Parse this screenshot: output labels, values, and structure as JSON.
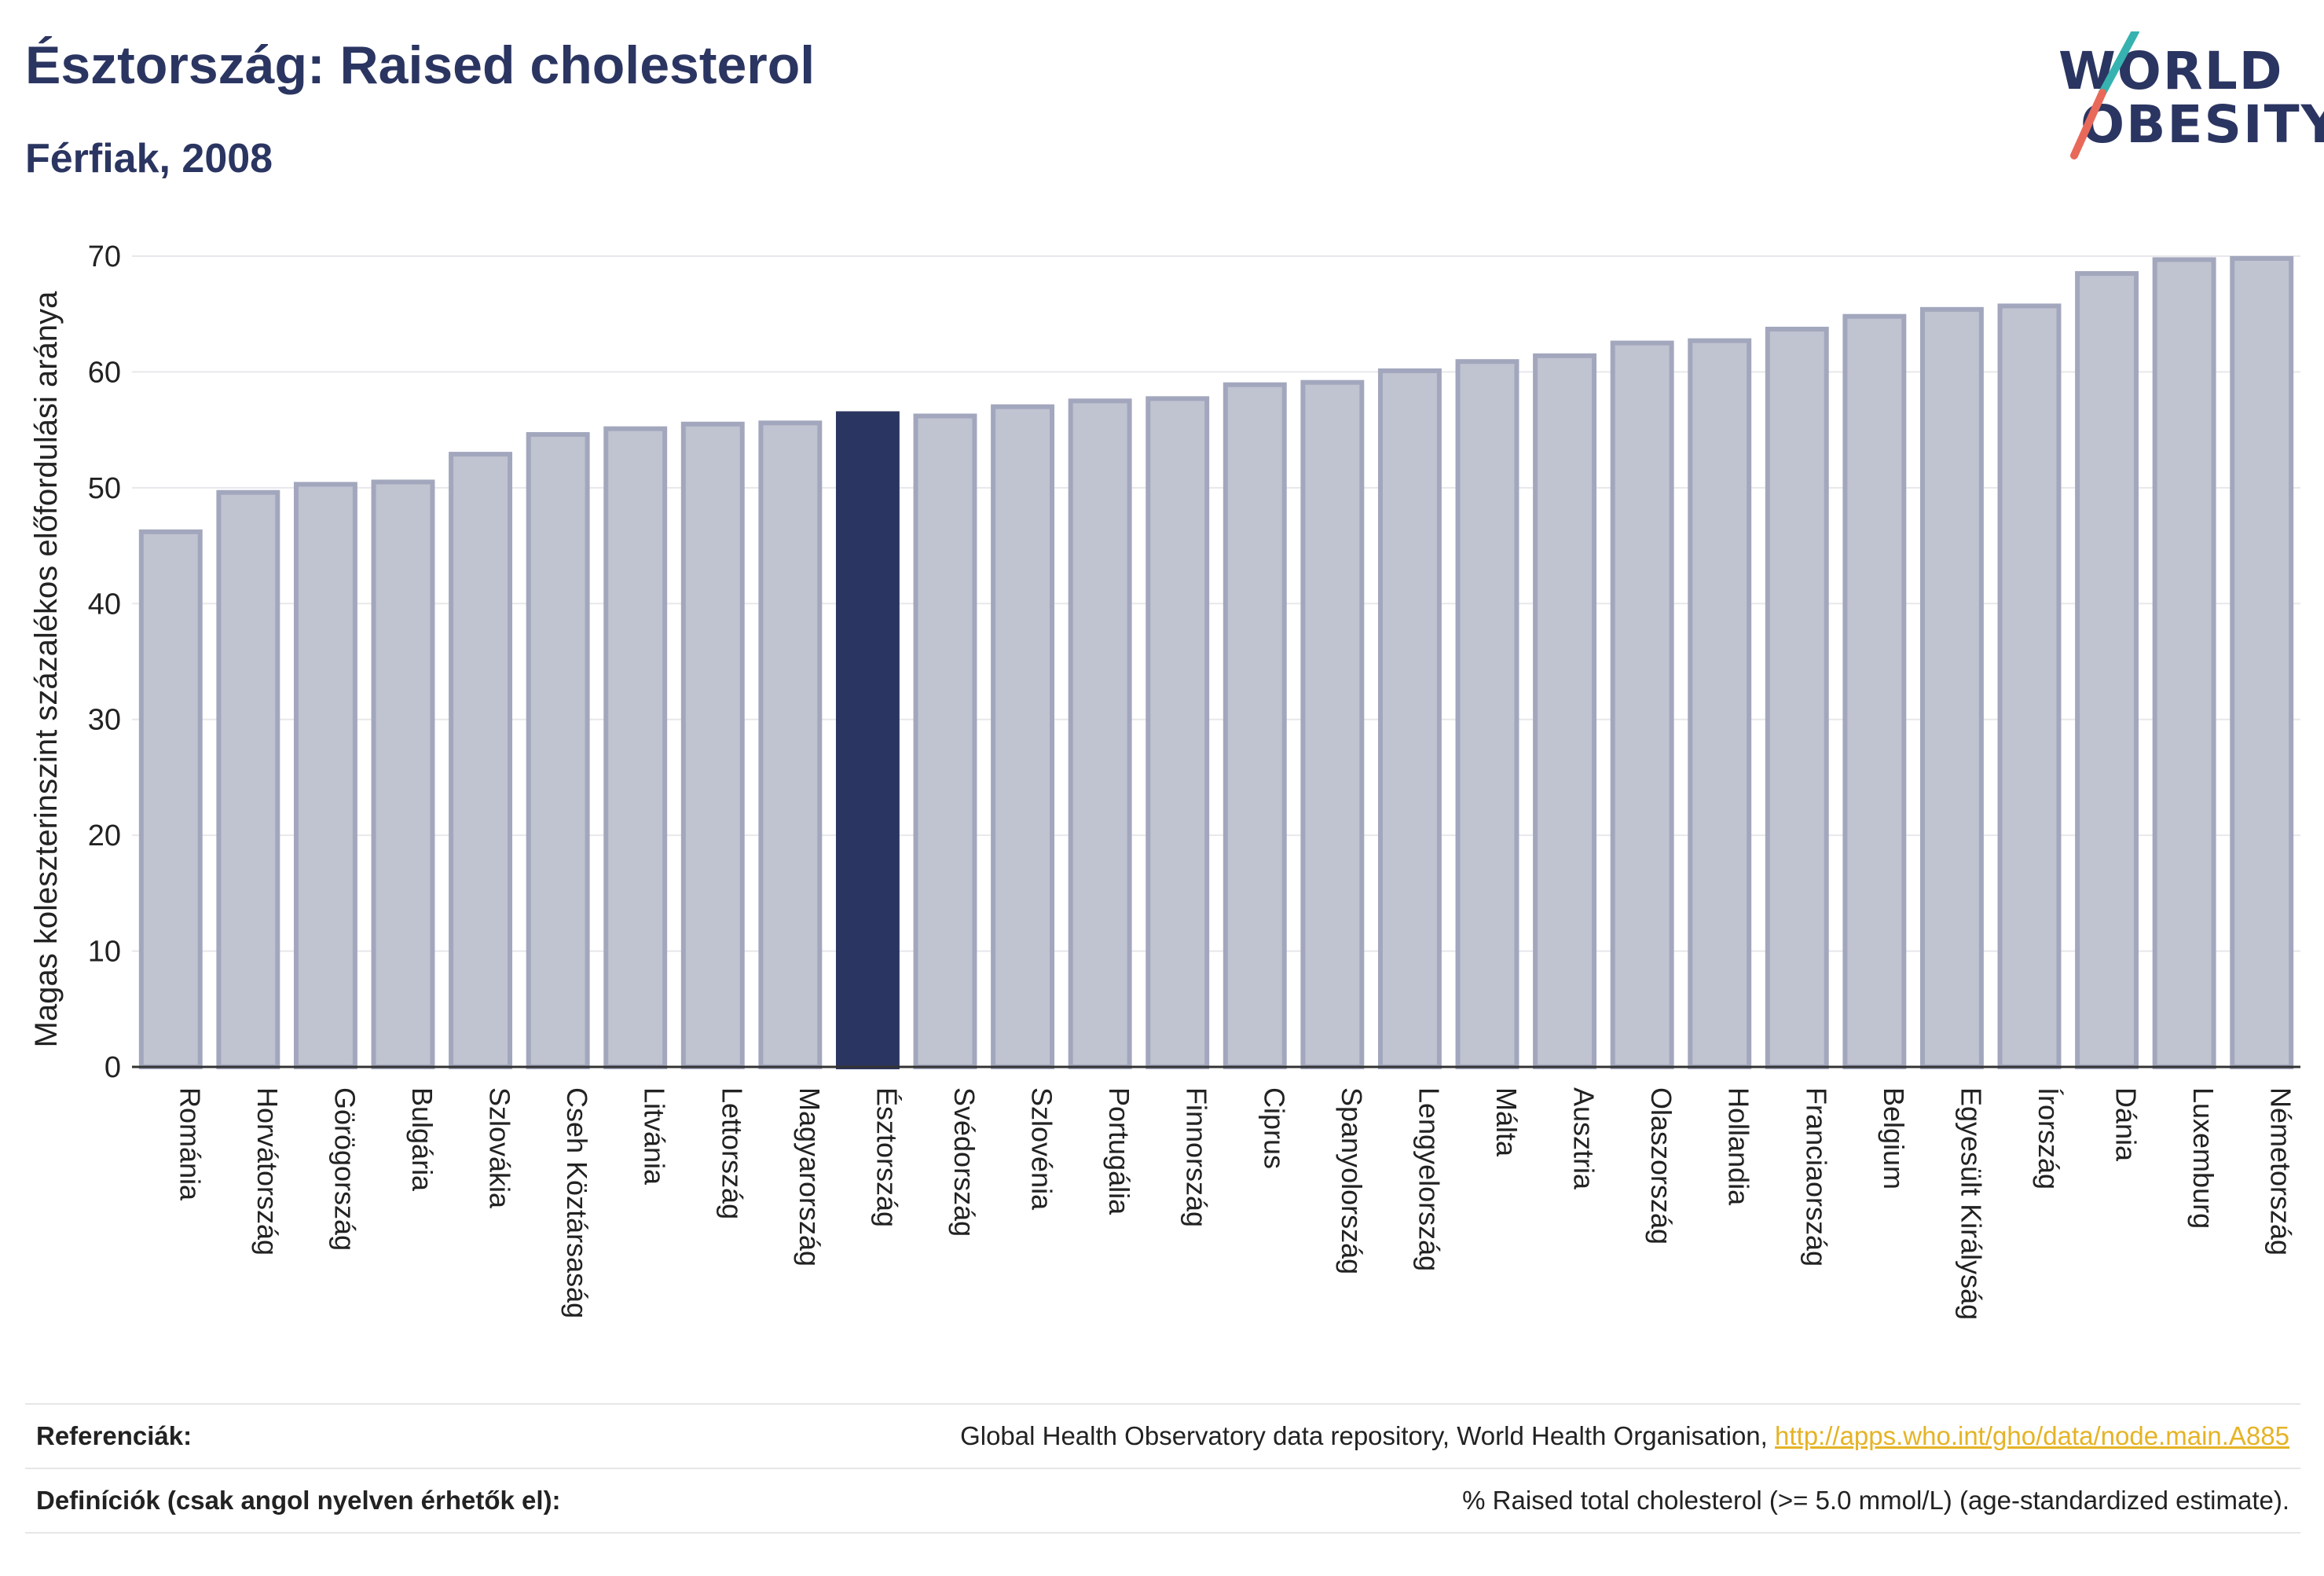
{
  "header": {
    "title": "Észtország: Raised cholesterol",
    "subtitle": "Férfiak, 2008"
  },
  "logo": {
    "line1": "WORLD",
    "line2": "OBESITY"
  },
  "colors": {
    "highlight": "#2b3561",
    "bar": "#c0c3d0",
    "bar_stroke": "#a2a7bd",
    "accent_teal": "#36b3b0",
    "accent_red": "#e8695a",
    "link": "#e5b325"
  },
  "chart_data": {
    "type": "bar",
    "title": "Észtország: Raised cholesterol",
    "subtitle": "Férfiak, 2008",
    "ylabel": "Magas koleszterinszint százalékos előfordulási aránya",
    "xlabel": "",
    "ylim": [
      0,
      70
    ],
    "yticks": [
      0,
      10,
      20,
      30,
      40,
      50,
      60,
      70
    ],
    "grid": true,
    "highlight": "Észtország",
    "categories": [
      "Románia",
      "Horvátország",
      "Görögország",
      "Bulgária",
      "Szlovákia",
      "Cseh Köztársaság",
      "Litvánia",
      "Lettország",
      "Magyarország",
      "Észtország",
      "Svédország",
      "Szlovénia",
      "Portugália",
      "Finnország",
      "Ciprus",
      "Spanyolország",
      "Lengyelország",
      "Málta",
      "Ausztria",
      "Olaszország",
      "Hollandia",
      "Franciaország",
      "Belgium",
      "Egyesült Királyság",
      "Írország",
      "Dánia",
      "Luxemburg",
      "Németország"
    ],
    "values": [
      46.2,
      49.6,
      50.3,
      50.5,
      52.9,
      54.6,
      55.1,
      55.5,
      55.6,
      56.4,
      56.2,
      57.0,
      57.5,
      57.7,
      58.9,
      59.1,
      60.1,
      60.9,
      61.4,
      62.5,
      62.7,
      63.7,
      64.8,
      65.4,
      65.7,
      68.5,
      69.7,
      69.8
    ]
  },
  "footer": {
    "references_label": "Referenciák:",
    "references_text": "Global Health Observatory data repository, World Health Organisation,",
    "references_link": "http://apps.who.int/gho/data/node.main.A885",
    "definitions_label": "Definíciók (csak angol nyelven érhetők el):",
    "definitions_text": "% Raised total cholesterol (>= 5.0 mmol/L) (age-standardized estimate)."
  }
}
